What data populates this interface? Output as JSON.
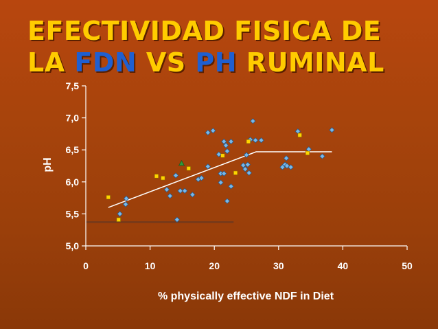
{
  "slide": {
    "title_line1": "EFECTIVIDAD FISICA DE",
    "title_line2_a": "LA ",
    "title_line2_b": "FDN",
    "title_line2_c": " VS ",
    "title_line2_d": "PH",
    "title_line2_e": " RUMINAL"
  },
  "colors": {
    "title": "#ffcc00",
    "title_highlight": "#1f5fd0",
    "diamond": "#79b8e8",
    "square": "#ffd400",
    "triangle": "#2e9a3a",
    "fit_line": "#ffffff",
    "ref_line": "#7a3a18",
    "axis": "#ffffff"
  },
  "chart_data": {
    "type": "scatter",
    "title": "",
    "xlabel": "% physically effective NDF in Diet",
    "ylabel": "pH",
    "xlim": [
      0,
      50
    ],
    "ylim": [
      5.0,
      7.5
    ],
    "xticks": [
      "0",
      "10",
      "20",
      "30",
      "40",
      "50"
    ],
    "yticks": [
      "5,0",
      "5,5",
      "6,0",
      "6,5",
      "7,0",
      "7,5"
    ],
    "grid": false,
    "legend": "none",
    "series": [
      {
        "marker": "diamond",
        "points": [
          [
            5.3,
            5.5
          ],
          [
            6.2,
            5.65
          ],
          [
            6.3,
            5.74
          ],
          [
            12.6,
            5.88
          ],
          [
            13.1,
            5.78
          ],
          [
            14.0,
            6.1
          ],
          [
            14.2,
            5.41
          ],
          [
            14.7,
            5.86
          ],
          [
            15.4,
            5.86
          ],
          [
            16.6,
            5.8
          ],
          [
            17.5,
            6.04
          ],
          [
            18.0,
            6.06
          ],
          [
            19.0,
            6.24
          ],
          [
            19.0,
            6.77
          ],
          [
            19.8,
            6.8
          ],
          [
            20.7,
            6.43
          ],
          [
            21.0,
            6.13
          ],
          [
            21.0,
            5.99
          ],
          [
            21.5,
            6.13
          ],
          [
            21.5,
            6.63
          ],
          [
            21.8,
            6.57
          ],
          [
            22.0,
            6.48
          ],
          [
            22.0,
            5.7
          ],
          [
            22.6,
            5.93
          ],
          [
            22.6,
            6.63
          ],
          [
            24.5,
            6.26
          ],
          [
            24.8,
            6.2
          ],
          [
            25.0,
            6.42
          ],
          [
            25.2,
            6.27
          ],
          [
            25.4,
            6.14
          ],
          [
            25.6,
            6.66
          ],
          [
            26.0,
            6.95
          ],
          [
            26.4,
            6.65
          ],
          [
            27.3,
            6.65
          ],
          [
            30.6,
            6.23
          ],
          [
            31.0,
            6.27
          ],
          [
            31.2,
            6.37
          ],
          [
            31.3,
            6.25
          ],
          [
            31.9,
            6.23
          ],
          [
            33.0,
            6.79
          ],
          [
            34.7,
            6.51
          ],
          [
            36.8,
            6.4
          ],
          [
            38.3,
            6.81
          ]
        ]
      },
      {
        "marker": "square",
        "points": [
          [
            3.5,
            5.76
          ],
          [
            5.1,
            5.41
          ],
          [
            11.0,
            6.09
          ],
          [
            12.0,
            6.06
          ],
          [
            16.0,
            6.21
          ],
          [
            21.3,
            6.41
          ],
          [
            23.3,
            6.14
          ],
          [
            25.3,
            6.63
          ],
          [
            33.3,
            6.73
          ],
          [
            34.5,
            6.45
          ]
        ]
      },
      {
        "marker": "triangle",
        "points": [
          [
            14.9,
            6.29
          ]
        ]
      }
    ],
    "fit_line": [
      [
        3.5,
        5.6
      ],
      [
        26.5,
        6.47
      ],
      [
        38.3,
        6.47
      ]
    ],
    "reference_line": [
      [
        0,
        5.37
      ],
      [
        23.0,
        5.37
      ]
    ]
  }
}
